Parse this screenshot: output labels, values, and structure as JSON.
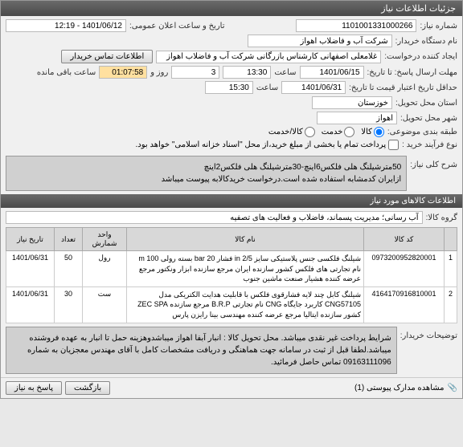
{
  "titlebar": "جزئیات اطلاعات نیاز",
  "fields": {
    "need_no_lbl": "شماره نیاز:",
    "need_no": "1101001331000266",
    "announce_lbl": "تاریخ و ساعت اعلان عمومی:",
    "announce": "1401/06/12 - 12:19",
    "buyer_org_lbl": "نام دستگاه خریدار:",
    "buyer_org": "شرکت آب و فاضلاب اهواز",
    "creator_lbl": "ایجاد کننده درخواست:",
    "creator": "غلامعلی اصفهانی کارشناس بازرگانی شرکت آب و فاضلاب اهواز",
    "contact_btn": "اطلاعات تماس خریدار",
    "reply_deadline_lbl": "مهلت ارسال پاسخ: تا تاریخ:",
    "reply_date": "1401/06/15",
    "time_lbl": "ساعت",
    "reply_time": "13:30",
    "days_lbl": "روز و",
    "days": "3",
    "remain_time": "01:07:58",
    "remain_lbl": "ساعت باقی مانده",
    "valid_lbl": "حداقل تاریخ اعتبار قیمت تا تاریخ:",
    "valid_date": "1401/06/31",
    "valid_time": "15:30",
    "province_lbl": "استان محل تحویل:",
    "province": "خوزستان",
    "city_lbl": "شهر محل تحویل:",
    "city": "اهواز",
    "category_lbl": "طبقه بندی موضوعی:",
    "cat_goods": "کالا",
    "cat_service": "خدمت",
    "cat_both": "کالا/خدمت",
    "process_lbl": "نوع فرآیند خرید :",
    "process_note": "پرداخت تمام یا بخشی از مبلغ خرید،از محل \"اسناد خزانه اسلامی\" خواهد بود.",
    "subject_lbl": "شرح کلی نیاز:",
    "subject": "50مترشیلنگ هلی فلکس6اینچ-30مترشیلنگ هلی فلکس2اینچ\nازایران کدمشابه استفاده شده است.درخواست خریدکالابه پیوست میباشد",
    "goods_head": "اطلاعات کالاهای مورد نیاز",
    "group_lbl": "گروه کالا:",
    "group": "آب رسانی؛ مدیریت پسماند، فاضلاب و فعالیت های تصفیه",
    "buyer_notes_lbl": "توضیحات خریدار:",
    "buyer_notes": "شرایط پرداخت غیر نقدی میباشد. محل تحویل کالا : انبار آبفا اهواز میباشدوهزینه حمل تا انبار به عهده فروشنده میباشد.لطفا قبل از ثبت در سامانه جهت هماهنگی و دریافت مشخصات کامل با آقای مهندس معجزیان به شماره 09163111096 تماس حاصل فرمائید."
  },
  "table": {
    "cols": [
      "",
      "کد کالا",
      "نام کالا",
      "واحد شمارش",
      "تعداد",
      "تاریخ نیاز"
    ],
    "rows": [
      {
        "n": "1",
        "code": "0973200952820001",
        "name": "شیلنگ فلکسی جنس پلاستیکی سایز 2/5 in فشار 20 bar بسته رولی m 100 نام تجارتی های فلکس کشور سازنده ایران مرجع سازنده ابزار ونکتور مرجع عرضه کننده هشیار صنعت ماشین جنوب",
        "unit": "رول",
        "qty": "50",
        "date": "1401/06/31"
      },
      {
        "n": "2",
        "code": "4164170916810001",
        "name": "شیلنگ کابل چند لایه فشارقوی فلکس با قابلیت هدایت الکتریکی مدل CNG57105 کاربرد جایگاه CNG نام تجارتی B.R.P مرجع سازنده ZEC SPA کشور سازنده ایتالیا مرجع عرضه کننده مهندسی بینا رایزن پارس",
        "unit": "ست",
        "qty": "30",
        "date": "1401/06/31"
      }
    ]
  },
  "footer": {
    "attach_lbl": "مشاهده مدارک پیوستی (1)",
    "back": "بازگشت",
    "reply": "پاسخ به نیاز"
  }
}
